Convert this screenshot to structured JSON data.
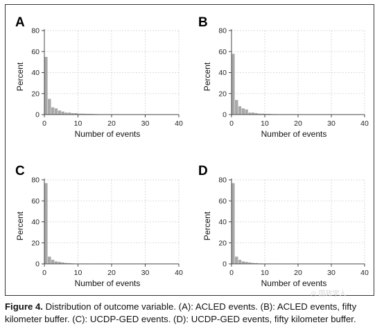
{
  "chart_data": [
    {
      "type": "bar",
      "panel_label": "A",
      "xlabel": "Number of events",
      "ylabel": "Percent",
      "xlim": [
        0,
        40
      ],
      "ylim": [
        0,
        80
      ],
      "xticks": [
        0,
        10,
        20,
        30,
        40
      ],
      "yticks": [
        0,
        20,
        40,
        60,
        80
      ],
      "grid": true,
      "bin_width": 1,
      "x": [
        0,
        1,
        2,
        3,
        4,
        5,
        6,
        7,
        8,
        9,
        10,
        11,
        12,
        13,
        14,
        15,
        16,
        17,
        18,
        19,
        20,
        21,
        22,
        23,
        24,
        25,
        26,
        27,
        28,
        29,
        30,
        31,
        32,
        33,
        34,
        35,
        36,
        37,
        38,
        39
      ],
      "values": [
        55,
        15,
        7,
        6,
        4,
        3,
        2,
        2,
        1.5,
        1.5,
        1,
        1,
        0.8,
        0.8,
        0.7,
        0.6,
        0.5,
        0.5,
        0.5,
        0.4,
        0.4,
        0.4,
        0.3,
        0.3,
        0.3,
        0.3,
        0.3,
        0.3,
        0.3,
        0.3,
        0.3,
        0.3,
        0.3,
        0.3,
        0.2,
        0.2,
        0.2,
        0.2,
        0.2,
        0.2
      ]
    },
    {
      "type": "bar",
      "panel_label": "B",
      "xlabel": "Number of events",
      "ylabel": "Percent",
      "xlim": [
        0,
        40
      ],
      "ylim": [
        0,
        80
      ],
      "xticks": [
        0,
        10,
        20,
        30,
        40
      ],
      "yticks": [
        0,
        20,
        40,
        60,
        80
      ],
      "grid": true,
      "bin_width": 1,
      "x": [
        0,
        1,
        2,
        3,
        4,
        5,
        6,
        7,
        8,
        9,
        10,
        11,
        12,
        13,
        14,
        15,
        16,
        17,
        18,
        19,
        20,
        21,
        22,
        23,
        24,
        25,
        26,
        27,
        28,
        29,
        30,
        31,
        32,
        33,
        34,
        35,
        36,
        37,
        38,
        39
      ],
      "values": [
        58,
        14,
        8,
        6,
        5,
        2,
        2,
        1.5,
        1,
        1,
        0.8,
        0.8,
        0.6,
        0.6,
        0.5,
        0.5,
        0.4,
        0.4,
        0.4,
        0.3,
        0.3,
        0.3,
        0.3,
        0.3,
        0.2,
        0.2,
        0.2,
        0.2,
        0.2,
        0.2,
        0.2,
        0.2,
        0.2,
        0.2,
        0.2,
        0.2,
        0.2,
        0.2,
        0.2,
        0.2
      ]
    },
    {
      "type": "bar",
      "panel_label": "C",
      "xlabel": "Number of events",
      "ylabel": "Percent",
      "xlim": [
        0,
        40
      ],
      "ylim": [
        0,
        80
      ],
      "xticks": [
        0,
        10,
        20,
        30,
        40
      ],
      "yticks": [
        0,
        20,
        40,
        60,
        80
      ],
      "grid": true,
      "bin_width": 1,
      "x": [
        0,
        1,
        2,
        3,
        4,
        5,
        6,
        7,
        8,
        9,
        10,
        11,
        12,
        13,
        14,
        15,
        16,
        17,
        18,
        19,
        20,
        21,
        22,
        23,
        24,
        25,
        26,
        27,
        28,
        29,
        30,
        31,
        32,
        33,
        34,
        35,
        36,
        37,
        38,
        39
      ],
      "values": [
        77,
        7,
        4,
        2.5,
        2,
        1.5,
        1,
        0.8,
        0.6,
        0.5,
        0.5,
        0.4,
        0.4,
        0.3,
        0.3,
        0.3,
        0.5,
        0.3,
        0.2,
        0.2,
        0.2,
        0.2,
        0.2,
        0.2,
        0.2,
        0.2,
        0.2,
        0.2,
        0.2,
        0.2,
        0.4,
        0.2,
        0.2,
        0.1,
        0.1,
        0.1,
        0.1,
        0.1,
        0.1,
        0.1
      ]
    },
    {
      "type": "bar",
      "panel_label": "D",
      "xlabel": "Number of events",
      "ylabel": "Percent",
      "xlim": [
        0,
        40
      ],
      "ylim": [
        0,
        80
      ],
      "xticks": [
        0,
        10,
        20,
        30,
        40
      ],
      "yticks": [
        0,
        20,
        40,
        60,
        80
      ],
      "grid": true,
      "bin_width": 1,
      "x": [
        0,
        1,
        2,
        3,
        4,
        5,
        6,
        7,
        8,
        9,
        10,
        11,
        12,
        13,
        14,
        15,
        16,
        17,
        18,
        19,
        20,
        21,
        22,
        23,
        24,
        25,
        26,
        27,
        28,
        29,
        30,
        31,
        32,
        33,
        34,
        35,
        36,
        37,
        38,
        39
      ],
      "values": [
        77,
        7,
        4,
        2.5,
        2,
        1.5,
        1,
        0.8,
        0.6,
        0.5,
        0.5,
        0.4,
        0.4,
        0.3,
        0.3,
        0.3,
        0.3,
        0.3,
        0.2,
        0.2,
        0.2,
        0.2,
        0.2,
        0.2,
        0.2,
        0.2,
        0.2,
        0.2,
        0.2,
        0.2,
        0.2,
        0.2,
        0.2,
        0.1,
        0.1,
        0.1,
        0.1,
        0.1,
        0.1,
        0.1
      ]
    }
  ],
  "colors": {
    "bar": "#a8a8a8",
    "grid": "#d0d0d0",
    "axis": "#444444",
    "frame": "#333333"
  },
  "caption": {
    "label": "Figure 4.",
    "text": " Distribution of outcome variable. (A): ACLED events. (B): ACLED events, fifty kilometer buffer. (C): UCDP-GED events. (D): UCDP-GED events, fifty kilometer buffer."
  }
}
